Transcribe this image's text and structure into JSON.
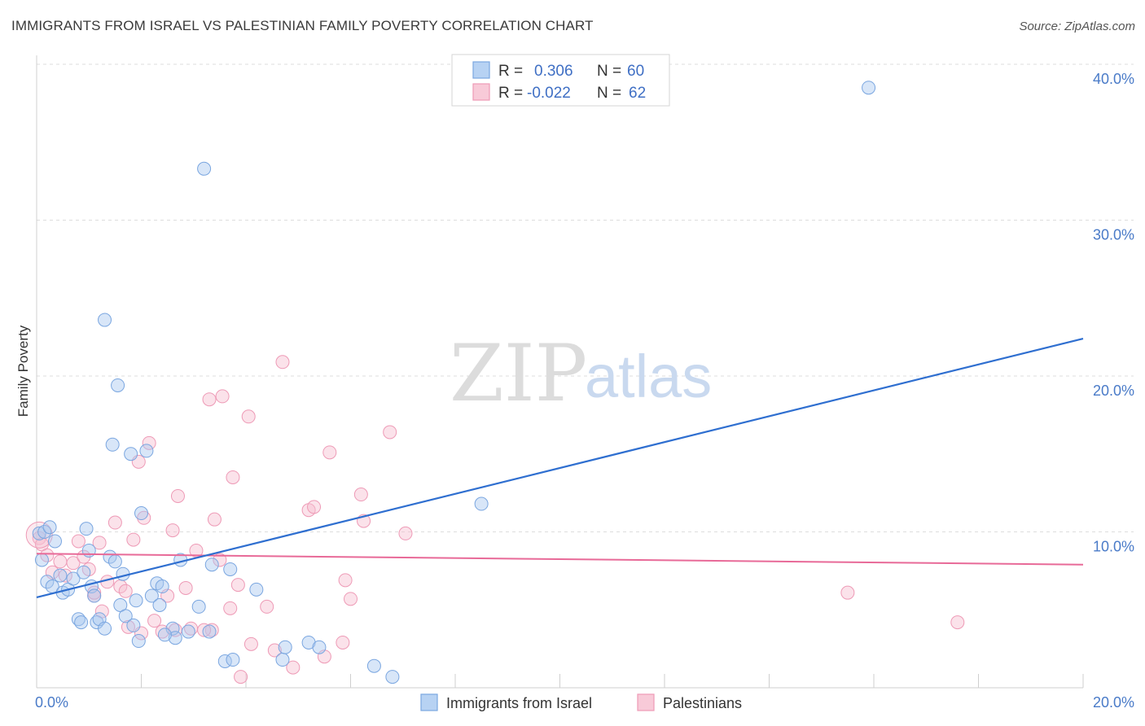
{
  "title": "IMMIGRANTS FROM ISRAEL VS PALESTINIAN FAMILY POVERTY CORRELATION CHART",
  "source": "Source: ZipAtlas.com",
  "watermark": {
    "zip": "ZIP",
    "atlas": "atlas"
  },
  "legend": {
    "r_label": "R =",
    "n_label": "N =",
    "series1": {
      "r": "0.306",
      "n": "60"
    },
    "series2": {
      "r": "-0.022",
      "n": "62"
    }
  },
  "chart_data": {
    "type": "scatter",
    "title": "IMMIGRANTS FROM ISRAEL VS PALESTINIAN FAMILY POVERTY CORRELATION CHART",
    "xlabel": "",
    "ylabel": "Family Poverty",
    "xlim": [
      0,
      20
    ],
    "ylim": [
      0,
      40
    ],
    "x_tick_labels": [
      "0.0%",
      "20.0%"
    ],
    "y_ticks": [
      10,
      20,
      30,
      40
    ],
    "y_tick_labels": [
      "10.0%",
      "20.0%",
      "30.0%",
      "40.0%"
    ],
    "colors": {
      "series1_fill": "#a9c8f0",
      "series1_stroke": "#7aa6e0",
      "series1_line": "#2f6fd0",
      "series2_fill": "#f6bfd0",
      "series2_stroke": "#ee9ab6",
      "series2_line": "#e86a98"
    },
    "series": [
      {
        "name": "Immigrants from Israel",
        "trend": {
          "x": [
            0,
            20
          ],
          "y": [
            5.8,
            22.4
          ]
        },
        "points": [
          [
            0.05,
            9.9
          ],
          [
            0.1,
            8.2
          ],
          [
            0.15,
            10.0
          ],
          [
            0.2,
            6.8
          ],
          [
            0.25,
            10.3
          ],
          [
            0.3,
            6.5
          ],
          [
            0.35,
            9.4
          ],
          [
            0.45,
            7.2
          ],
          [
            0.5,
            6.1
          ],
          [
            0.6,
            6.3
          ],
          [
            0.7,
            7.0
          ],
          [
            0.8,
            4.4
          ],
          [
            0.85,
            4.2
          ],
          [
            0.9,
            7.4
          ],
          [
            0.95,
            10.2
          ],
          [
            1.0,
            8.8
          ],
          [
            1.05,
            6.5
          ],
          [
            1.1,
            5.9
          ],
          [
            1.15,
            4.2
          ],
          [
            1.2,
            4.4
          ],
          [
            1.3,
            23.6
          ],
          [
            1.3,
            3.8
          ],
          [
            1.4,
            8.4
          ],
          [
            1.45,
            15.6
          ],
          [
            1.5,
            8.1
          ],
          [
            1.55,
            19.4
          ],
          [
            1.6,
            5.3
          ],
          [
            1.65,
            7.3
          ],
          [
            1.7,
            4.6
          ],
          [
            1.8,
            15.0
          ],
          [
            1.85,
            4.0
          ],
          [
            1.9,
            5.6
          ],
          [
            1.95,
            3.0
          ],
          [
            2.0,
            11.2
          ],
          [
            2.1,
            15.2
          ],
          [
            2.2,
            5.9
          ],
          [
            2.3,
            6.7
          ],
          [
            2.35,
            5.3
          ],
          [
            2.4,
            6.5
          ],
          [
            2.6,
            3.8
          ],
          [
            2.65,
            3.2
          ],
          [
            2.75,
            8.2
          ],
          [
            2.9,
            3.6
          ],
          [
            3.1,
            5.2
          ],
          [
            3.2,
            33.3
          ],
          [
            3.3,
            3.6
          ],
          [
            3.35,
            7.9
          ],
          [
            3.6,
            1.7
          ],
          [
            3.75,
            1.8
          ],
          [
            4.2,
            6.3
          ],
          [
            4.7,
            1.8
          ],
          [
            4.75,
            2.6
          ],
          [
            5.2,
            2.9
          ],
          [
            5.4,
            2.6
          ],
          [
            6.45,
            1.4
          ],
          [
            6.8,
            0.7
          ],
          [
            8.5,
            11.8
          ],
          [
            15.9,
            38.5
          ],
          [
            3.7,
            7.6
          ],
          [
            2.45,
            3.4
          ]
        ]
      },
      {
        "name": "Palestinians",
        "trend": {
          "x": [
            0,
            20
          ],
          "y": [
            8.6,
            7.9
          ]
        },
        "points": [
          [
            0.05,
            9.6
          ],
          [
            0.1,
            9.2
          ],
          [
            0.2,
            8.5
          ],
          [
            0.3,
            7.4
          ],
          [
            0.45,
            8.1
          ],
          [
            0.55,
            7.2
          ],
          [
            0.7,
            8.0
          ],
          [
            0.8,
            9.4
          ],
          [
            0.9,
            8.4
          ],
          [
            1.0,
            7.6
          ],
          [
            1.1,
            5.9
          ],
          [
            1.2,
            9.3
          ],
          [
            1.25,
            4.9
          ],
          [
            1.35,
            6.8
          ],
          [
            1.5,
            10.6
          ],
          [
            1.6,
            6.5
          ],
          [
            1.7,
            6.2
          ],
          [
            1.75,
            3.9
          ],
          [
            1.85,
            9.5
          ],
          [
            1.95,
            14.5
          ],
          [
            2.05,
            10.9
          ],
          [
            2.15,
            15.7
          ],
          [
            2.25,
            4.3
          ],
          [
            2.4,
            3.6
          ],
          [
            2.5,
            5.9
          ],
          [
            2.6,
            10.1
          ],
          [
            2.65,
            3.7
          ],
          [
            2.7,
            12.3
          ],
          [
            2.85,
            6.4
          ],
          [
            2.95,
            3.8
          ],
          [
            3.05,
            8.8
          ],
          [
            3.3,
            18.5
          ],
          [
            3.35,
            3.7
          ],
          [
            3.4,
            10.8
          ],
          [
            3.5,
            8.2
          ],
          [
            3.55,
            18.7
          ],
          [
            3.7,
            5.1
          ],
          [
            3.75,
            13.5
          ],
          [
            3.9,
            0.7
          ],
          [
            3.85,
            6.6
          ],
          [
            4.05,
            17.4
          ],
          [
            4.4,
            5.2
          ],
          [
            4.55,
            2.4
          ],
          [
            4.7,
            20.9
          ],
          [
            4.9,
            1.3
          ],
          [
            5.2,
            11.4
          ],
          [
            5.3,
            11.6
          ],
          [
            5.5,
            2.0
          ],
          [
            5.6,
            15.1
          ],
          [
            5.85,
            2.9
          ],
          [
            5.9,
            6.9
          ],
          [
            6.0,
            5.7
          ],
          [
            6.2,
            12.4
          ],
          [
            6.25,
            10.7
          ],
          [
            6.75,
            16.4
          ],
          [
            7.05,
            9.9
          ],
          [
            15.5,
            6.1
          ],
          [
            17.6,
            4.2
          ],
          [
            2.0,
            3.5
          ],
          [
            3.2,
            3.7
          ],
          [
            4.1,
            2.8
          ],
          [
            1.1,
            6.1
          ]
        ]
      }
    ],
    "bottom_legend": [
      "Immigrants from Israel",
      "Palestinians"
    ]
  }
}
